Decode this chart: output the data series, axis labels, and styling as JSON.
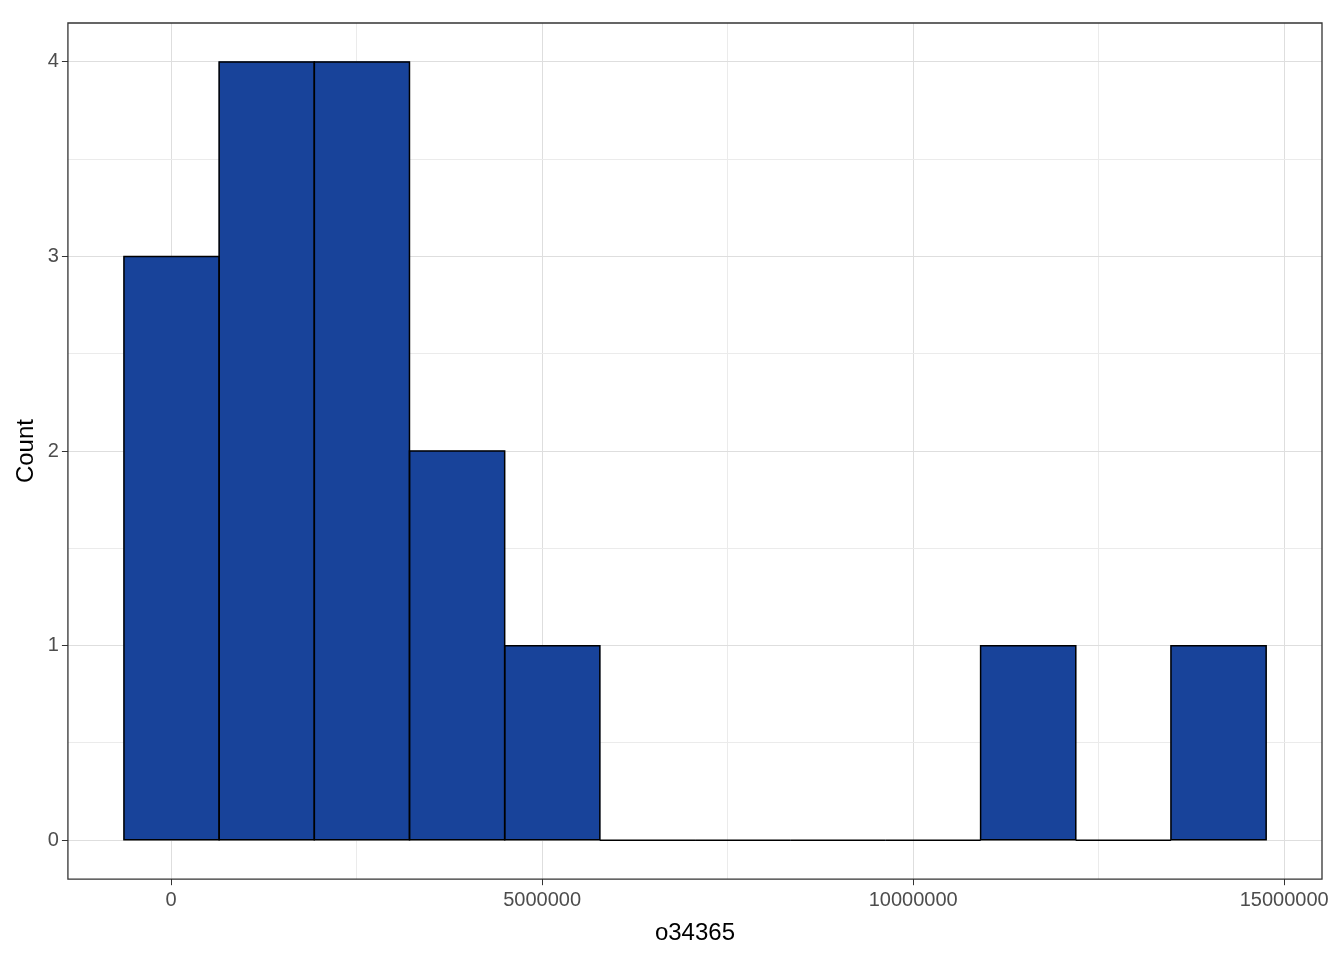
{
  "chart_data": {
    "type": "histogram",
    "xlabel": "o34365",
    "ylabel": "Count",
    "bins": [
      -635000,
      648000,
      1930000,
      3213000,
      4496000,
      5778000,
      7061000,
      8344000,
      9627000,
      10909000,
      12192000,
      13475000,
      14757000
    ],
    "values": [
      3,
      4,
      4,
      2,
      1,
      0,
      0,
      0,
      0,
      1,
      0,
      1
    ],
    "color": "#18439a",
    "xlim": [
      -1390000,
      15510000
    ],
    "xticks": [
      0,
      {
        "value": 2500000,
        "label": null
      },
      5000000,
      {
        "value": 7500000,
        "label": null
      },
      10000000,
      {
        "value": 12500000,
        "label": null
      },
      15000000
    ],
    "ylim": [
      -0.2,
      4.2
    ],
    "yticks": [
      0,
      {
        "value": 0.5,
        "label": null
      },
      1,
      {
        "value": 1.5,
        "label": null
      },
      2,
      {
        "value": 2.5,
        "label": null
      },
      3,
      {
        "value": 3.5,
        "label": null
      },
      4
    ],
    "grid": true,
    "legend": false
  }
}
